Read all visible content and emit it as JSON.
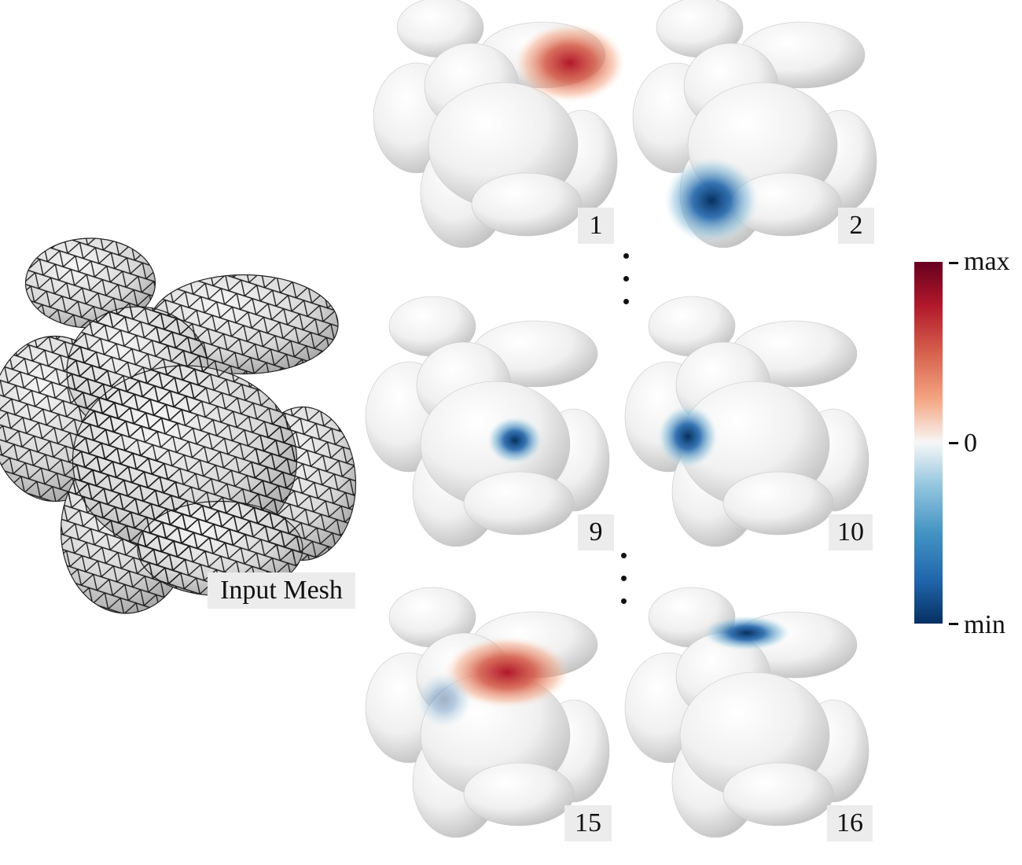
{
  "input_mesh": {
    "label": "Input Mesh"
  },
  "panels": [
    {
      "id": "1",
      "label": "1",
      "blob": {
        "color": "#c0242c",
        "kind": "max"
      }
    },
    {
      "id": "2",
      "label": "2",
      "blob": {
        "color": "#0b3e74",
        "kind": "min"
      }
    },
    {
      "id": "9",
      "label": "9",
      "blob": {
        "color": "#0f4f8f",
        "kind": "min"
      }
    },
    {
      "id": "10",
      "label": "10",
      "blob": {
        "color": "#14508e",
        "kind": "min"
      }
    },
    {
      "id": "15",
      "label": "15",
      "blob": {
        "color": "#b3141f",
        "kind": "max"
      }
    },
    {
      "id": "16",
      "label": "16",
      "blob": {
        "color": "#1d5f9c",
        "kind": "min"
      }
    }
  ],
  "colorbar": {
    "max_label": "max",
    "zero_label": "0",
    "min_label": "min",
    "colors": {
      "max": "#6a0220",
      "mid": "#f7f7f7",
      "min": "#053061"
    }
  }
}
